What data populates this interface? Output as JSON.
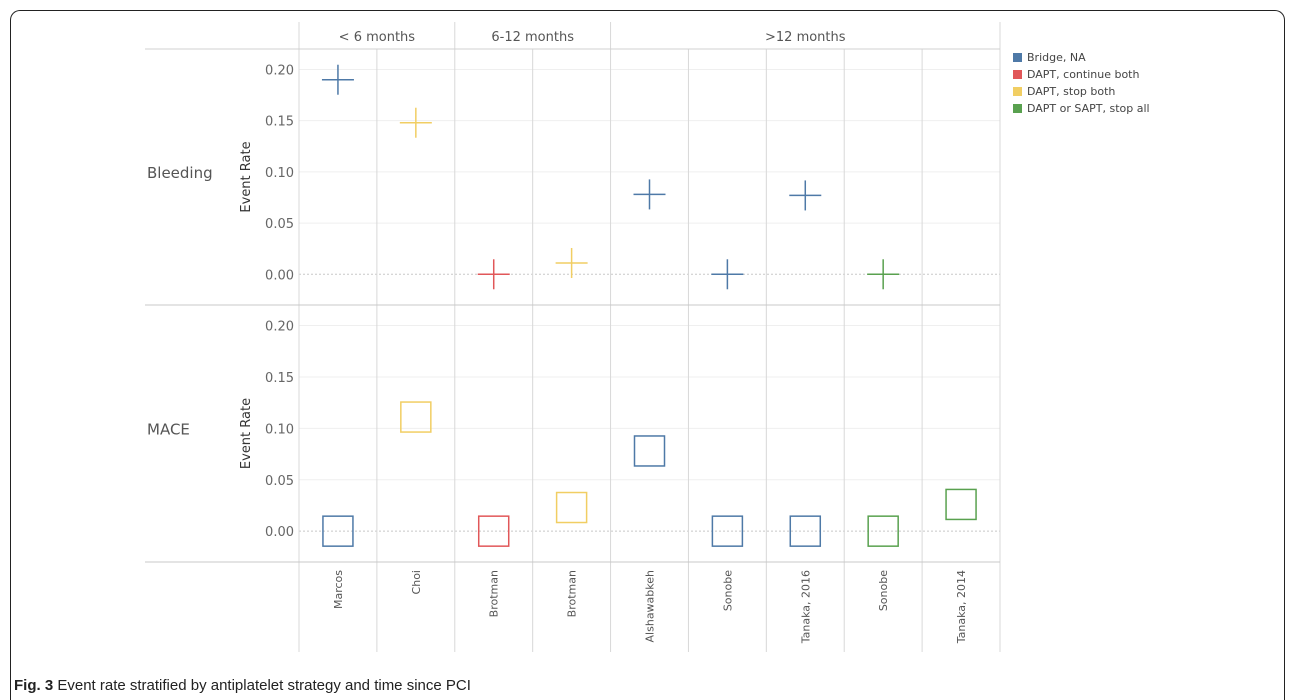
{
  "caption": {
    "label": "Fig. 3",
    "text": "Event rate stratified by antiplatelet strategy and time since PCI"
  },
  "legend": [
    {
      "name": "Bridge, NA",
      "color": "#4e79a7"
    },
    {
      "name": "DAPT, continue both",
      "color": "#e15759"
    },
    {
      "name": "DAPT, stop both",
      "color": "#f1ce63"
    },
    {
      "name": "DAPT or SAPT, stop all",
      "color": "#59a14f"
    }
  ],
  "chart_data": {
    "type": "scatter",
    "groups": [
      {
        "label": "< 6 months",
        "columns": 2
      },
      {
        "label": "6-12 months",
        "columns": 2
      },
      {
        "label": ">12 months",
        "columns": 5
      }
    ],
    "categories": [
      "Marcos",
      "Choi",
      "Brotman",
      "Brotman",
      "Alshawabkeh",
      "Sonobe",
      "Tanaka, 2016",
      "Sonobe",
      "Tanaka, 2014"
    ],
    "ylabel": "Event Rate",
    "ylim": [
      -0.03,
      0.22
    ],
    "yticks": [
      "0.00",
      "0.05",
      "0.10",
      "0.15",
      "0.20"
    ],
    "panels": [
      {
        "label": "Bleeding",
        "marker": "cross",
        "points": [
          {
            "col": 0,
            "y": 0.19,
            "series": "Bridge, NA"
          },
          {
            "col": 1,
            "y": 0.148,
            "series": "DAPT, stop both"
          },
          {
            "col": 2,
            "y": 0.0,
            "series": "DAPT, continue both"
          },
          {
            "col": 3,
            "y": 0.011,
            "series": "DAPT, stop both"
          },
          {
            "col": 4,
            "y": 0.078,
            "series": "Bridge, NA"
          },
          {
            "col": 5,
            "y": 0.0,
            "series": "Bridge, NA"
          },
          {
            "col": 6,
            "y": 0.077,
            "series": "Bridge, NA"
          },
          {
            "col": 7,
            "y": 0.0,
            "series": "DAPT or SAPT, stop all"
          }
        ]
      },
      {
        "label": "MACE",
        "marker": "square",
        "points": [
          {
            "col": 0,
            "y": 0.0,
            "series": "Bridge, NA"
          },
          {
            "col": 1,
            "y": 0.111,
            "series": "DAPT, stop both"
          },
          {
            "col": 2,
            "y": 0.0,
            "series": "DAPT, continue both"
          },
          {
            "col": 3,
            "y": 0.023,
            "series": "DAPT, stop both"
          },
          {
            "col": 4,
            "y": 0.078,
            "series": "Bridge, NA"
          },
          {
            "col": 5,
            "y": 0.0,
            "series": "Bridge, NA"
          },
          {
            "col": 6,
            "y": 0.0,
            "series": "Bridge, NA"
          },
          {
            "col": 7,
            "y": 0.0,
            "series": "DAPT or SAPT, stop all"
          },
          {
            "col": 8,
            "y": 0.026,
            "series": "DAPT or SAPT, stop all"
          }
        ]
      }
    ]
  }
}
